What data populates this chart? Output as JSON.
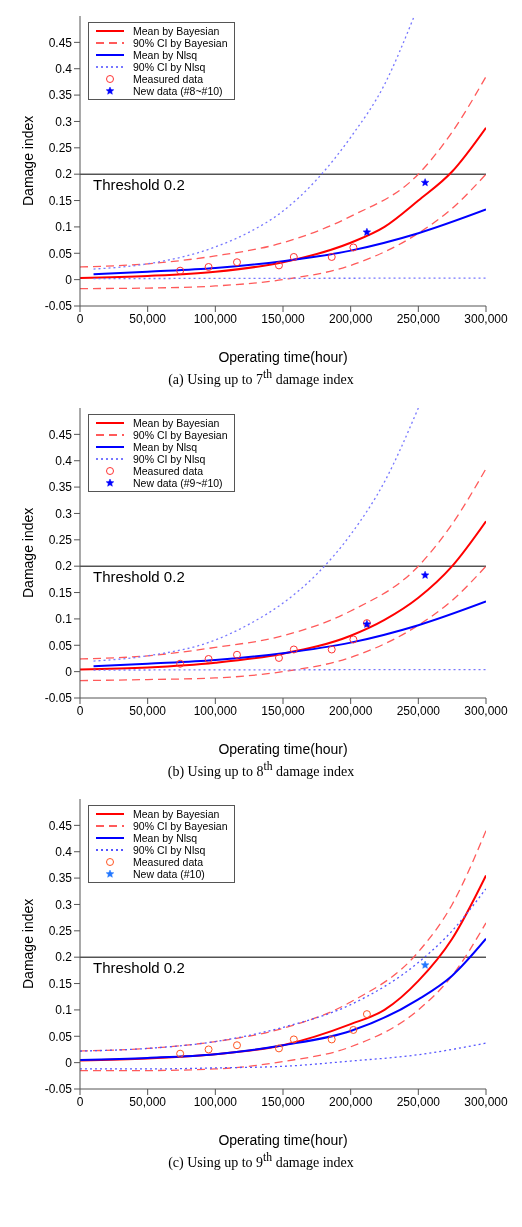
{
  "chart_data": [
    {
      "type": "line",
      "title": "(a) Using up to 7$^{th}$ damage index",
      "xlabel": "Operating time(hour)",
      "ylabel": "Damage index",
      "xlim": [
        0,
        300000
      ],
      "xticks": [
        {
          "value": 0,
          "label": "0"
        },
        {
          "value": 50000,
          "label": "50,000"
        },
        {
          "value": 100000,
          "label": "100,000"
        },
        {
          "value": 150000,
          "label": "150,000"
        },
        {
          "value": 200000,
          "label": "200,000"
        },
        {
          "value": 250000,
          "label": "250,000"
        },
        {
          "value": 300000,
          "label": "300,000"
        }
      ],
      "ylim": [
        -0.05,
        0.5
      ],
      "yticks": [
        -0.05,
        0,
        0.05,
        0.1,
        0.15,
        0.2,
        0.25,
        0.3,
        0.35,
        0.4,
        0.45
      ],
      "grid": false,
      "legend": "top left",
      "ref_lines": [
        {
          "axis": "y",
          "value": 0.2,
          "label": "Threshold 0.2",
          "color": "#000000"
        }
      ],
      "series": [
        {
          "type": "line",
          "name": "Mean by Bayesian",
          "color": "#ff0000",
          "line_style": "solid",
          "x": [
            0,
            50000,
            100000,
            150000,
            200000,
            225000,
            250000,
            275000,
            300000
          ],
          "values": [
            0.003,
            0.007,
            0.015,
            0.033,
            0.07,
            0.1,
            0.15,
            0.205,
            0.288
          ]
        },
        {
          "type": "line",
          "name": "90% CI by Bayesian",
          "color": "#ff5a5a",
          "line_style": "dashed",
          "x": [
            0,
            50000,
            100000,
            150000,
            200000,
            250000,
            275000,
            300000
          ],
          "values": [
            0.024,
            0.03,
            0.045,
            0.07,
            0.12,
            0.2,
            0.28,
            0.385
          ]
        },
        {
          "type": "line",
          "color": "#ff5a5a",
          "line_style": "dashed",
          "x": [
            0,
            50000,
            100000,
            150000,
            200000,
            250000,
            275000,
            300000
          ],
          "values": [
            -0.017,
            -0.016,
            -0.012,
            0.0,
            0.027,
            0.088,
            0.135,
            0.2
          ]
        },
        {
          "type": "line",
          "name": "Mean by Nlsq",
          "color": "#0000ff",
          "line_style": "solid",
          "x": [
            10000,
            50000,
            100000,
            150000,
            200000,
            250000,
            300000
          ],
          "values": [
            0.01,
            0.015,
            0.022,
            0.035,
            0.055,
            0.088,
            0.133
          ]
        },
        {
          "type": "line",
          "name": "90% CI by Nlsq",
          "color": "#7777ff",
          "line_style": "dotted",
          "x": [
            10000,
            50000,
            100000,
            125000,
            150000,
            175000,
            200000,
            225000,
            247000
          ],
          "values": [
            0.02,
            0.03,
            0.062,
            0.09,
            0.13,
            0.19,
            0.27,
            0.37,
            0.5
          ]
        },
        {
          "type": "line",
          "color": "#7777ff",
          "line_style": "dotted",
          "x": [
            10000,
            300000
          ],
          "values": [
            0.002,
            0.003
          ]
        },
        {
          "type": "scatter",
          "name": "Measured data",
          "color": "#ff3333",
          "marker": "circle",
          "x": [
            74000,
            95000,
            116000,
            147000,
            158000,
            186000,
            202000
          ],
          "values": [
            0.017,
            0.024,
            0.033,
            0.027,
            0.043,
            0.043,
            0.061
          ]
        },
        {
          "type": "scatter",
          "name": "New data (#8~#10)",
          "color": "#0000ff",
          "marker": "star",
          "x": [
            212000,
            255000
          ],
          "values": [
            0.09,
            0.184
          ]
        }
      ]
    },
    {
      "type": "line",
      "title": "(b) Using up to 8$^{th}$ damage index",
      "xlabel": "Operating time(hour)",
      "ylabel": "Damage index",
      "xlim": [
        0,
        300000
      ],
      "xticks": [
        {
          "value": 0,
          "label": "0"
        },
        {
          "value": 50000,
          "label": "50,000"
        },
        {
          "value": 100000,
          "label": "100,000"
        },
        {
          "value": 150000,
          "label": "150,000"
        },
        {
          "value": 200000,
          "label": "200,000"
        },
        {
          "value": 250000,
          "label": "250,000"
        },
        {
          "value": 300000,
          "label": "300,000"
        }
      ],
      "ylim": [
        -0.05,
        0.5
      ],
      "yticks": [
        -0.05,
        0,
        0.05,
        0.1,
        0.15,
        0.2,
        0.25,
        0.3,
        0.35,
        0.4,
        0.45
      ],
      "grid": false,
      "legend": "top left",
      "ref_lines": [
        {
          "axis": "y",
          "value": 0.2,
          "label": "Threshold 0.2",
          "color": "#000000"
        }
      ],
      "series": [
        {
          "type": "line",
          "name": "Mean by Bayesian",
          "color": "#ff0000",
          "line_style": "solid",
          "x": [
            0,
            50000,
            100000,
            150000,
            200000,
            225000,
            250000,
            275000,
            300000
          ],
          "values": [
            0.004,
            0.008,
            0.017,
            0.034,
            0.068,
            0.098,
            0.14,
            0.2,
            0.285
          ]
        },
        {
          "type": "line",
          "name": "90% CI by Bayesian",
          "color": "#ff5a5a",
          "line_style": "dashed",
          "x": [
            0,
            50000,
            100000,
            150000,
            200000,
            250000,
            275000,
            300000
          ],
          "values": [
            0.024,
            0.03,
            0.046,
            0.068,
            0.115,
            0.2,
            0.28,
            0.385
          ]
        },
        {
          "type": "line",
          "color": "#ff5a5a",
          "line_style": "dashed",
          "x": [
            0,
            50000,
            100000,
            150000,
            200000,
            250000,
            275000,
            300000
          ],
          "values": [
            -0.017,
            -0.015,
            -0.012,
            0.0,
            0.027,
            0.088,
            0.135,
            0.2
          ]
        },
        {
          "type": "line",
          "name": "Mean by Nlsq",
          "color": "#0000ff",
          "line_style": "solid",
          "x": [
            10000,
            50000,
            100000,
            150000,
            200000,
            250000,
            300000
          ],
          "values": [
            0.01,
            0.015,
            0.022,
            0.035,
            0.055,
            0.088,
            0.133
          ]
        },
        {
          "type": "line",
          "name": "90% CI by Nlsq",
          "color": "#7777ff",
          "line_style": "dotted",
          "x": [
            10000,
            50000,
            100000,
            125000,
            150000,
            175000,
            200000,
            225000,
            250000
          ],
          "values": [
            0.02,
            0.03,
            0.06,
            0.09,
            0.13,
            0.185,
            0.26,
            0.36,
            0.5
          ]
        },
        {
          "type": "line",
          "color": "#7777ff",
          "line_style": "dotted",
          "x": [
            10000,
            300000
          ],
          "values": [
            0.003,
            0.004
          ]
        },
        {
          "type": "scatter",
          "name": "Measured data",
          "color": "#ff3333",
          "marker": "circle",
          "x": [
            74000,
            95000,
            116000,
            147000,
            158000,
            186000,
            202000,
            212000
          ],
          "values": [
            0.015,
            0.024,
            0.032,
            0.026,
            0.042,
            0.042,
            0.061,
            0.092
          ]
        },
        {
          "type": "scatter",
          "name": "New data (#9~#10)",
          "color": "#0000ff",
          "marker": "star",
          "x": [
            212000,
            255000
          ],
          "values": [
            0.09,
            0.183
          ]
        }
      ]
    },
    {
      "type": "line",
      "title": "(c) Using up to 9$^{th}$ damage index",
      "xlabel": "Operating time(hour)",
      "ylabel": "Damage index",
      "xlim": [
        0,
        300000
      ],
      "xticks": [
        {
          "value": 0,
          "label": "0"
        },
        {
          "value": 50000,
          "label": "50,000"
        },
        {
          "value": 100000,
          "label": "100,000"
        },
        {
          "value": 150000,
          "label": "150,000"
        },
        {
          "value": 200000,
          "label": "200,000"
        },
        {
          "value": 250000,
          "label": "250,000"
        },
        {
          "value": 300000,
          "label": "300,000"
        }
      ],
      "ylim": [
        -0.05,
        0.5
      ],
      "yticks": [
        -0.05,
        0,
        0.05,
        0.1,
        0.15,
        0.2,
        0.25,
        0.3,
        0.35,
        0.4,
        0.45
      ],
      "grid": false,
      "legend": "top left",
      "ref_lines": [
        {
          "axis": "y",
          "value": 0.2,
          "label": "Threshold 0.2",
          "color": "#000000"
        }
      ],
      "series": [
        {
          "type": "line",
          "name": "Mean by Bayesian",
          "color": "#ff0000",
          "line_style": "solid",
          "x": [
            0,
            50000,
            100000,
            150000,
            200000,
            225000,
            250000,
            275000,
            300000
          ],
          "values": [
            0.004,
            0.008,
            0.016,
            0.033,
            0.073,
            0.1,
            0.155,
            0.235,
            0.355
          ]
        },
        {
          "type": "line",
          "name": "90% CI by Bayesian",
          "color": "#ff5a5a",
          "line_style": "dashed",
          "x": [
            0,
            50000,
            100000,
            150000,
            200000,
            250000,
            275000,
            300000
          ],
          "values": [
            0.022,
            0.027,
            0.04,
            0.065,
            0.115,
            0.21,
            0.3,
            0.44
          ]
        },
        {
          "type": "line",
          "color": "#ff5a5a",
          "line_style": "dashed",
          "x": [
            0,
            50000,
            100000,
            150000,
            200000,
            250000,
            275000,
            300000
          ],
          "values": [
            -0.015,
            -0.015,
            -0.012,
            0.002,
            0.03,
            0.1,
            0.165,
            0.265
          ]
        },
        {
          "type": "line",
          "name": "Mean by Nlsq",
          "color": "#0000ff",
          "line_style": "solid",
          "x": [
            0,
            50000,
            100000,
            150000,
            200000,
            250000,
            275000,
            300000
          ],
          "values": [
            0.005,
            0.009,
            0.016,
            0.033,
            0.06,
            0.12,
            0.165,
            0.235
          ]
        },
        {
          "type": "line",
          "name": "90% CI by Nlsq",
          "color": "#5555ff",
          "line_style": "dotted",
          "x": [
            0,
            50000,
            100000,
            150000,
            200000,
            250000,
            275000,
            300000
          ],
          "values": [
            0.022,
            0.027,
            0.04,
            0.067,
            0.11,
            0.19,
            0.25,
            0.33
          ]
        },
        {
          "type": "line",
          "color": "#5555ff",
          "line_style": "dotted",
          "x": [
            0,
            50000,
            100000,
            150000,
            200000,
            250000,
            300000
          ],
          "values": [
            -0.012,
            -0.012,
            -0.01,
            -0.007,
            0.003,
            0.015,
            0.037
          ]
        },
        {
          "type": "scatter",
          "name": "Measured data",
          "color": "#ff5522",
          "marker": "circle",
          "x": [
            74000,
            95000,
            116000,
            147000,
            158000,
            186000,
            202000,
            212000
          ],
          "values": [
            0.017,
            0.025,
            0.033,
            0.027,
            0.044,
            0.044,
            0.062,
            0.092
          ]
        },
        {
          "type": "scatter",
          "name": "New data (#10)",
          "color": "#2277ff",
          "marker": "star",
          "x": [
            255000
          ],
          "values": [
            0.185
          ]
        }
      ]
    }
  ]
}
